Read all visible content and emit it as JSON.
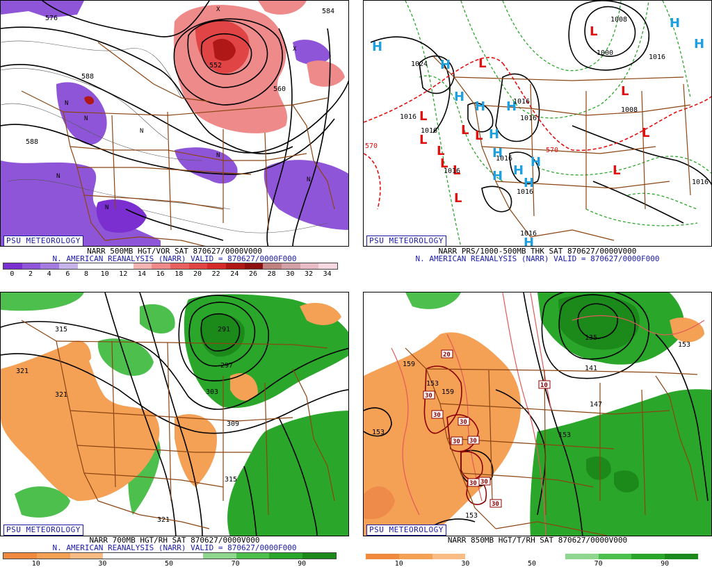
{
  "badge": "PSU METEOROLOGY",
  "panels": {
    "p1": {
      "line1": "NARR 500MB HGT/VOR SAT 870627/0000V000",
      "line2": "N. AMERICAN REANALYSIS (NARR) VALID = 870627/0000F000",
      "scale_labels": [
        "0",
        "2",
        "4",
        "6",
        "8",
        "10",
        "12",
        "14",
        "16",
        "18",
        "20",
        "22",
        "24",
        "26",
        "28",
        "30",
        "32",
        "34"
      ],
      "scale_colors": [
        "#7b2fd0",
        "#8f55d8",
        "#a47be0",
        "#c7b4ea",
        "#ffffff",
        "#ffffff",
        "#ffffff",
        "#f4b4b4",
        "#ee8a8a",
        "#e86060",
        "#e04444",
        "#d42a2a",
        "#b01818",
        "#8c1010",
        "#c08080",
        "#d4a0a8",
        "#e8bcc4",
        "#f8d8e0"
      ],
      "contour_labels": [
        "576",
        "552",
        "588",
        "588",
        "584",
        "560"
      ]
    },
    "p2": {
      "line1": "NARR PRS/1000-500MB THK SAT 870627/0000V000",
      "line2": "N. AMERICAN REANALYSIS (NARR) VALID = 870627/0000F000",
      "isobar_labels": [
        "1024",
        "1016",
        "1008",
        "1000",
        "1016",
        "1016",
        "1016",
        "1016",
        "1016",
        "1008",
        "1016",
        "1016",
        "1016",
        "1016"
      ],
      "thickness_labels": [
        "570",
        "570"
      ]
    },
    "p3": {
      "line1": "NARR 700MB HGT/RH SAT 870627/0000V000",
      "line2": "N. AMERICAN REANALYSIS (NARR) VALID = 870627/0000F000",
      "scale_labels": [
        "10",
        "30",
        "50",
        "70",
        "90"
      ],
      "contour_labels": [
        "315",
        "321",
        "321",
        "291",
        "297",
        "303",
        "309",
        "315",
        "321"
      ]
    },
    "p4": {
      "line1": "NARR 850MB HGT/T/RH SAT 870627/0000V000",
      "scale_labels": [
        "10",
        "30",
        "50",
        "70",
        "90"
      ],
      "contour_labels": [
        "135",
        "141",
        "147",
        "153",
        "153",
        "153",
        "159",
        "159",
        "153",
        "153"
      ],
      "temp_labels": [
        "20",
        "10",
        "30",
        "30",
        "30",
        "30",
        "30",
        "30",
        "30",
        "30"
      ]
    }
  },
  "colors": {
    "border": "#8b4513",
    "high": "#1ea0e0",
    "low": "#e01010",
    "green": "#2aa62a",
    "orange": "#f4a055"
  }
}
